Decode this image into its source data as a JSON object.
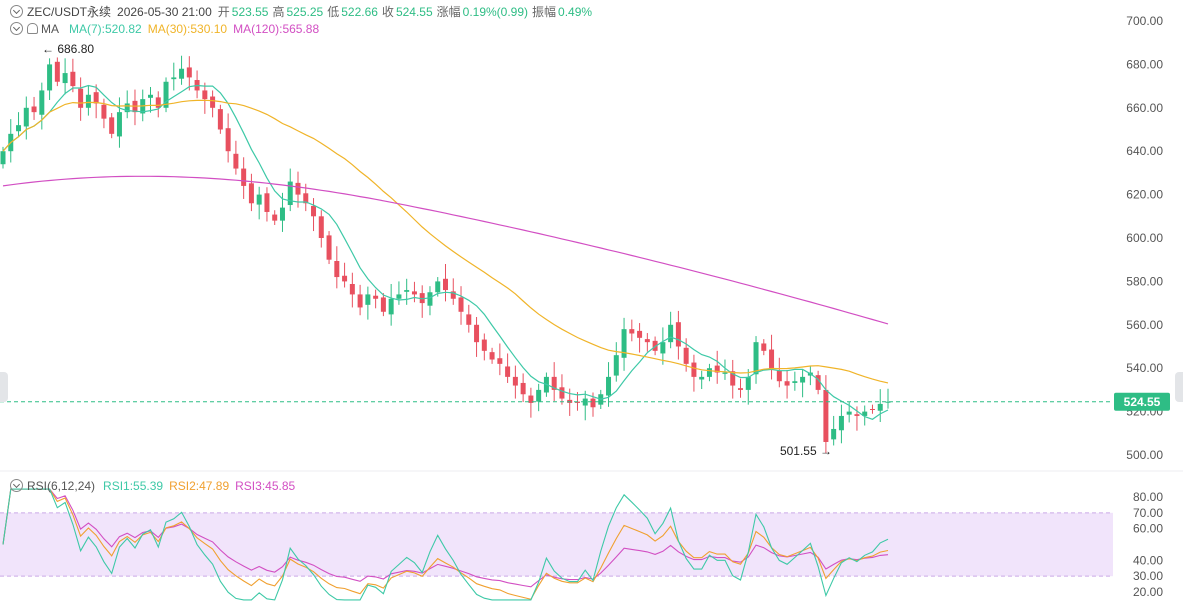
{
  "header": {
    "symbol": "ZEC/USDT永续",
    "datetime": "2026-05-30 21:00",
    "open_label": "开",
    "open": "523.55",
    "high_label": "高",
    "high": "525.25",
    "low_label": "低",
    "low": "522.66",
    "close_label": "收",
    "close": "524.55",
    "change_label": "涨幅",
    "change": "0.19%(0.99)",
    "amplitude_label": "振幅",
    "amplitude": "0.49%"
  },
  "ma_legend": {
    "title": "MA",
    "ma7": "MA(7):520.82",
    "ma30": "MA(30):530.10",
    "ma120": "MA(120):565.88"
  },
  "rsi_legend": {
    "title": "RSI(6,12,24)",
    "rsi1": "RSI1:55.39",
    "rsi2": "RSI2:47.89",
    "rsi3": "RSI3:45.85"
  },
  "annotations": {
    "high_marker": "686.80",
    "low_marker": "501.55",
    "last_price": "524.55"
  },
  "colors": {
    "up": "#2ebd85",
    "down": "#e8505f",
    "ma7": "#3ec9a7",
    "ma30": "#f0b429",
    "ma120": "#d24fc3",
    "rsi1": "#3ec9a7",
    "rsi2": "#f0a030",
    "rsi3": "#d24fc3",
    "rsi_band": "#f1e4fb"
  },
  "chart_data": [
    {
      "type": "candlestick",
      "title": "ZEC/USDT永续",
      "price_axis_ticks": [
        "700.00",
        "680.00",
        "660.00",
        "640.00",
        "620.00",
        "600.00",
        "580.00",
        "560.00",
        "540.00",
        "520.00",
        "500.00"
      ],
      "ylim": [
        496,
        704
      ],
      "grid": false,
      "closes": [
        640,
        648,
        652,
        660,
        658,
        668,
        680,
        672,
        676,
        670,
        660,
        666,
        662,
        655,
        648,
        658,
        662,
        658,
        664,
        666,
        660,
        672,
        674,
        678,
        674,
        668,
        664,
        660,
        650,
        640,
        632,
        624,
        616,
        620,
        612,
        608,
        614,
        626,
        620,
        616,
        610,
        600,
        590,
        582,
        580,
        574,
        568,
        574,
        572,
        566,
        572,
        574,
        576,
        574,
        570,
        575,
        580,
        576,
        572,
        566,
        560,
        552,
        548,
        544,
        542,
        536,
        532,
        528,
        524,
        530,
        536,
        530,
        526,
        524,
        524,
        526,
        522,
        528,
        536,
        546,
        558,
        556,
        554,
        552,
        548,
        552,
        560,
        550,
        542,
        536,
        536,
        540,
        538,
        538,
        532,
        530,
        536,
        552,
        548,
        540,
        534,
        532,
        534,
        536,
        538,
        530,
        506,
        512,
        518,
        520,
        518,
        520,
        521,
        523.55,
        524.55
      ],
      "ma7_last": 520.82,
      "ma30_last": 530.1,
      "ma120_last": 565.88,
      "high": 686.8,
      "low": 501.55,
      "last": 524.55
    },
    {
      "type": "line",
      "title": "RSI(6,12,24)",
      "axis_ticks": [
        "80.00",
        "70.00",
        "60.00",
        "40.00",
        "30.00",
        "20.00"
      ],
      "ylim": [
        18,
        82
      ],
      "band": [
        30,
        70
      ],
      "series": [
        {
          "name": "RSI1",
          "last": 55.39
        },
        {
          "name": "RSI2",
          "last": 47.89
        },
        {
          "name": "RSI3",
          "last": 45.85
        }
      ]
    }
  ]
}
